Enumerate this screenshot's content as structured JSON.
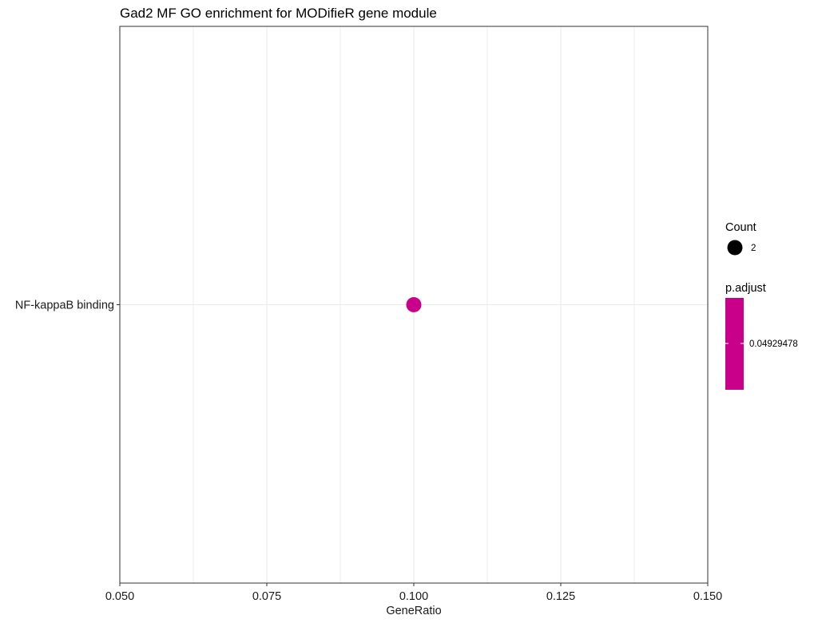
{
  "chart_data": {
    "type": "scatter",
    "title": "Gad2 MF GO enrichment for MODifieR gene module",
    "xlabel": "GeneRatio",
    "ylabel": "",
    "xlim": [
      0.05,
      0.15
    ],
    "x_ticks": [
      0.05,
      0.075,
      0.1,
      0.125,
      0.15
    ],
    "x_tick_labels": [
      "0.050",
      "0.075",
      "0.100",
      "0.125",
      "0.150"
    ],
    "x_minor_ticks": [
      0.0625,
      0.0875,
      0.1125,
      0.1375
    ],
    "categories": [
      "NF-kappaB binding"
    ],
    "grid": true,
    "points": [
      {
        "term": "NF-kappaB binding",
        "x": 0.1,
        "count": 2,
        "p_adjust": 0.04929478,
        "color": "#c8008a"
      }
    ],
    "legend": {
      "placement": "right",
      "size": {
        "title": "Count",
        "entries": [
          {
            "label": "2",
            "value": 2
          }
        ]
      },
      "color": {
        "title": "p.adjust",
        "labels": [
          "0.04929478"
        ],
        "color": "#c8008a"
      }
    },
    "colors": {
      "point": "#c8008a",
      "count_key": "#000000",
      "grid": "#ebebeb",
      "panel_border": "#333333"
    }
  }
}
